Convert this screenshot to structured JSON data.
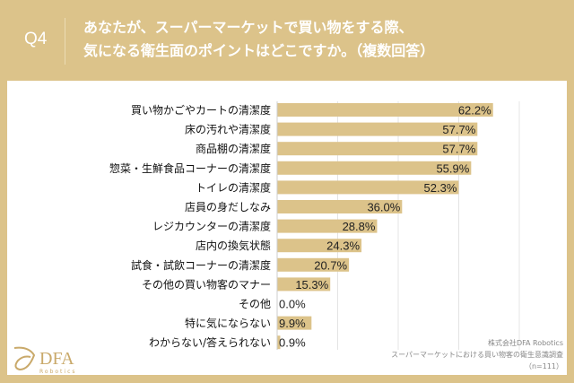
{
  "header": {
    "q_label": "Q4",
    "title_line1": "あなたが、スーパーマーケットで買い物をする際、",
    "title_line2": "気になる衛生面のポイントはどこですか。（複数回答）"
  },
  "chart_data": {
    "type": "bar",
    "orientation": "horizontal",
    "unit": "%",
    "bar_color": "#dcc38a",
    "categories": [
      "買い物かごやカートの清潔度",
      "床の汚れや清潔度",
      "商品棚の清潔度",
      "惣菜・生鮮食品コーナーの清潔度",
      "トイレの清潔度",
      "店員の身だしなみ",
      "レジカウンターの清潔度",
      "店内の換気状態",
      "試食・試飲コーナーの清潔度",
      "その他の買い物客のマナー",
      "その他",
      "特に気にならない",
      "わからない/答えられない"
    ],
    "values": [
      62.2,
      57.7,
      57.7,
      55.9,
      52.3,
      36.0,
      28.8,
      24.3,
      20.7,
      15.3,
      0.0,
      9.9,
      0.9
    ],
    "grid": true
  },
  "logo": {
    "name": "DFA",
    "sub": "Robotics"
  },
  "source": {
    "line1": "株式会社DFA Robotics",
    "line2": "スーパーマーケットにおける買い物客の衛生意識調査",
    "line3": "（n=111）"
  }
}
